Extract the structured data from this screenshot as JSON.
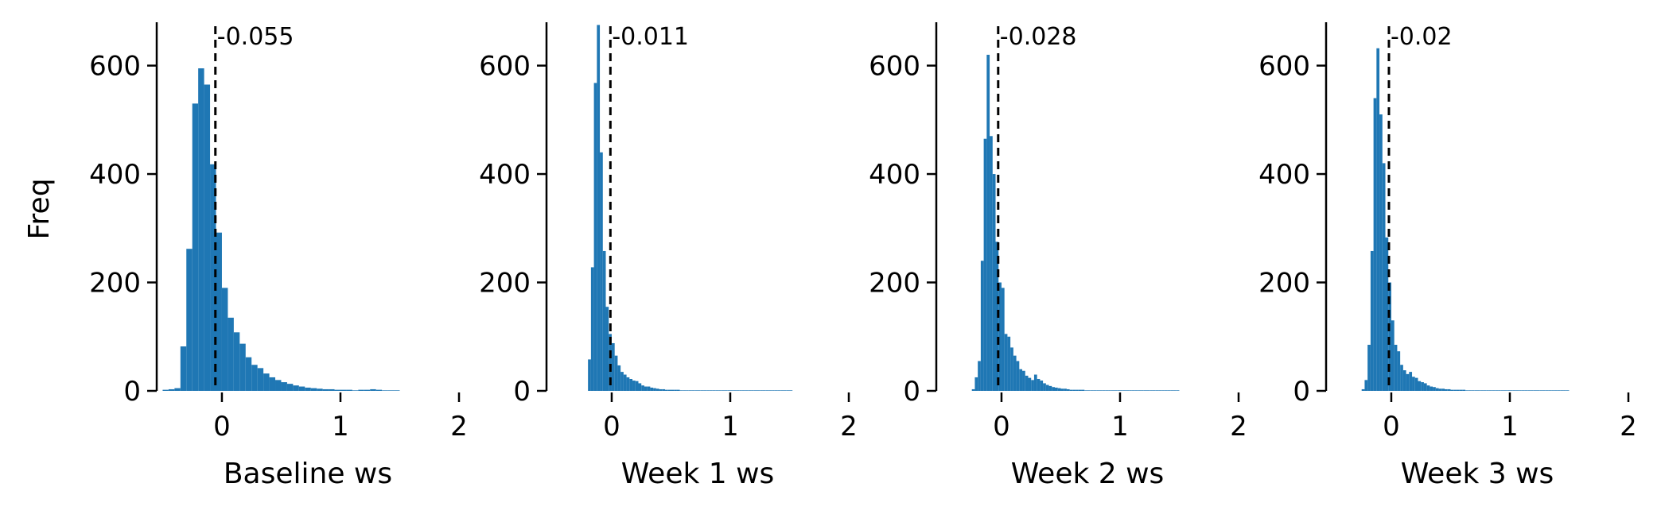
{
  "figure": {
    "ylabel": "Freq",
    "bar_color": "#1f77b4",
    "median_line_color": "#000000"
  },
  "chart_data": [
    {
      "type": "bar",
      "xlabel": "Baseline ws",
      "ylabel": "Freq",
      "xlim": [
        -0.55,
        2.0
      ],
      "ylim": [
        0,
        680
      ],
      "xticks": [
        0,
        1,
        2
      ],
      "yticks": [
        0,
        200,
        400,
        600
      ],
      "grid": false,
      "median": -0.055,
      "median_label": "-0.055",
      "bin_start": -0.5,
      "bin_width": 0.05,
      "values": [
        2,
        3,
        5,
        82,
        262,
        530,
        595,
        565,
        418,
        292,
        190,
        135,
        108,
        87,
        62,
        48,
        42,
        32,
        25,
        20,
        16,
        13,
        10,
        8,
        6,
        5,
        4,
        3,
        3,
        2,
        2,
        2,
        1,
        2,
        2,
        3,
        2,
        1,
        1,
        1
      ]
    },
    {
      "type": "bar",
      "xlabel": "Week 1 ws",
      "ylabel": "",
      "xlim": [
        -0.55,
        2.0
      ],
      "ylim": [
        0,
        680
      ],
      "xticks": [
        0,
        1,
        2
      ],
      "yticks": [
        0,
        200,
        400,
        600
      ],
      "grid": false,
      "median": -0.011,
      "median_label": "-0.011",
      "bin_start": -0.2,
      "bin_width": 0.025,
      "values": [
        58,
        228,
        568,
        675,
        440,
        258,
        155,
        105,
        88,
        65,
        47,
        35,
        30,
        25,
        22,
        19,
        18,
        14,
        10,
        8,
        8,
        6,
        5,
        4,
        3,
        3,
        2,
        2,
        2,
        2,
        2,
        1,
        1,
        1,
        1,
        1,
        1,
        1,
        1,
        1,
        1,
        1,
        1,
        1,
        1,
        1,
        1,
        1,
        1,
        1,
        1,
        1,
        1,
        1,
        1,
        1,
        1,
        1,
        1,
        1,
        1,
        1,
        1,
        1,
        1,
        1,
        1,
        1,
        1
      ]
    },
    {
      "type": "bar",
      "xlabel": "Week 2 ws",
      "ylabel": "",
      "xlim": [
        -0.55,
        2.0
      ],
      "ylim": [
        0,
        680
      ],
      "xticks": [
        0,
        1,
        2
      ],
      "yticks": [
        0,
        200,
        400,
        600
      ],
      "grid": false,
      "median": -0.028,
      "median_label": "-0.028",
      "bin_start": -0.25,
      "bin_width": 0.025,
      "values": [
        3,
        25,
        55,
        240,
        465,
        620,
        470,
        400,
        275,
        200,
        190,
        105,
        100,
        80,
        65,
        55,
        40,
        37,
        28,
        24,
        20,
        30,
        22,
        19,
        14,
        11,
        9,
        7,
        6,
        5,
        4,
        4,
        3,
        2,
        2,
        2,
        2,
        2,
        1,
        1,
        1,
        1,
        1,
        1,
        1,
        1,
        1,
        1,
        1,
        1,
        1,
        1,
        1,
        1,
        1,
        1,
        1,
        1,
        1,
        1,
        1,
        1,
        1,
        1,
        1,
        1,
        1,
        1,
        1,
        1
      ]
    },
    {
      "type": "bar",
      "xlabel": "Week 3 ws",
      "ylabel": "",
      "xlim": [
        -0.55,
        2.0
      ],
      "ylim": [
        0,
        680
      ],
      "xticks": [
        0,
        1,
        2
      ],
      "yticks": [
        0,
        200,
        400,
        600
      ],
      "grid": false,
      "median": -0.02,
      "median_label": "-0.02",
      "bin_start": -0.25,
      "bin_width": 0.025,
      "values": [
        3,
        20,
        85,
        258,
        540,
        632,
        510,
        420,
        283,
        200,
        130,
        85,
        73,
        48,
        38,
        31,
        35,
        26,
        24,
        18,
        16,
        14,
        10,
        8,
        7,
        5,
        4,
        4,
        3,
        3,
        2,
        2,
        2,
        2,
        2,
        1,
        1,
        1,
        1,
        1,
        1,
        1,
        1,
        1,
        1,
        1,
        1,
        1,
        1,
        1,
        1,
        1,
        1,
        1,
        1,
        1,
        1,
        1,
        1,
        1,
        1,
        1,
        1,
        1,
        1,
        1,
        1,
        1,
        1,
        1
      ]
    }
  ]
}
